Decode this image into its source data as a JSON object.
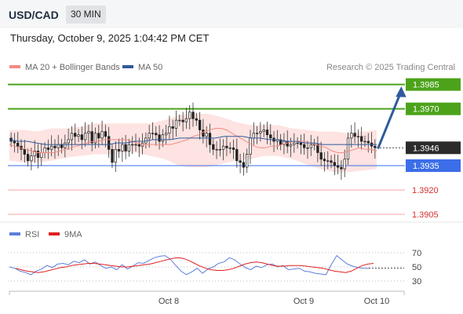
{
  "header": {
    "symbol": "USD/CAD",
    "timeframe": "30 MIN"
  },
  "timestamp": "Thursday, October 9, 2025 1:04:42 PM CET",
  "legend": {
    "ma20": {
      "label": "MA 20 + Bollinger Bands",
      "color": "#f28b82"
    },
    "ma50": {
      "label": "MA 50",
      "color": "#2e5a9c"
    }
  },
  "credit": "Research © 2025 Trading Central",
  "rsi_legend": {
    "rsi": {
      "label": "RSI",
      "color": "#5b7fdb"
    },
    "ma9": {
      "label": "9MA",
      "color": "#e02020"
    }
  },
  "chart_data": [
    {
      "type": "candlestick",
      "title": "USD/CAD",
      "timeframe": "30 MIN",
      "price_range": [
        1.39,
        1.399
      ],
      "x_tick_labels": [
        "Oct 8",
        "Oct 9",
        "Oct 10"
      ],
      "levels": [
        {
          "label": "1.3985",
          "value": 1.3985,
          "kind": "resistance",
          "color": "#4ca31a"
        },
        {
          "label": "1.3970",
          "value": 1.397,
          "kind": "resistance",
          "color": "#4ca31a"
        },
        {
          "label": "1.3946",
          "value": 1.3946,
          "kind": "last",
          "color": "#2b2b2b"
        },
        {
          "label": "1.3935",
          "value": 1.3935,
          "kind": "pivot",
          "color": "#3b6ee8"
        },
        {
          "label": "1.3920",
          "value": 1.392,
          "kind": "support",
          "color": "#d32f2f"
        },
        {
          "label": "1.3905",
          "value": 1.3905,
          "kind": "support",
          "color": "#d32f2f"
        }
      ],
      "closes": [
        1.395,
        1.3949,
        1.3947,
        1.3945,
        1.3942,
        1.3938,
        1.3941,
        1.3944,
        1.394,
        1.3943,
        1.3946,
        1.3945,
        1.3947,
        1.3946,
        1.3948,
        1.3946,
        1.3949,
        1.3951,
        1.3955,
        1.3953,
        1.3954,
        1.3951,
        1.3955,
        1.3956,
        1.3949,
        1.3955,
        1.3952,
        1.3956,
        1.3953,
        1.3945,
        1.3937,
        1.3945,
        1.3944,
        1.3948,
        1.3944,
        1.3948,
        1.3948,
        1.3948,
        1.3947,
        1.3949,
        1.3952,
        1.3955,
        1.3955,
        1.3954,
        1.395,
        1.3954,
        1.3955,
        1.3959,
        1.3958,
        1.3963,
        1.3963,
        1.3962,
        1.3964,
        1.3968,
        1.3964,
        1.3963,
        1.3957,
        1.3953,
        1.3955,
        1.3948,
        1.3945,
        1.3945,
        1.3945,
        1.3947,
        1.3946,
        1.3946,
        1.3945,
        1.3938,
        1.3937,
        1.3934,
        1.3942,
        1.3952,
        1.3955,
        1.3955,
        1.3956,
        1.3957,
        1.3954,
        1.3952,
        1.395,
        1.3951,
        1.3948,
        1.395,
        1.3947,
        1.3948,
        1.3949,
        1.3949,
        1.3948,
        1.3946,
        1.3946,
        1.3948,
        1.3948,
        1.3943,
        1.3939,
        1.3938,
        1.3938,
        1.3937,
        1.3935,
        1.3934,
        1.3933,
        1.3939,
        1.3952,
        1.3955,
        1.3953,
        1.3953,
        1.395,
        1.395,
        1.3949,
        1.3947,
        1.3946
      ],
      "ma20": [
        1.3948,
        1.3947,
        1.3946,
        1.3945,
        1.3944,
        1.3943,
        1.3943,
        1.3943,
        1.3943,
        1.3944,
        1.3945,
        1.3946,
        1.3947,
        1.3948,
        1.3949,
        1.395,
        1.395,
        1.3951,
        1.3951,
        1.3951,
        1.3951,
        1.3951,
        1.395,
        1.3949,
        1.3948,
        1.3948,
        1.3948,
        1.3948,
        1.3948,
        1.3948,
        1.3949,
        1.395,
        1.3951,
        1.3953,
        1.3954,
        1.3956,
        1.3957,
        1.3958,
        1.3958,
        1.3957,
        1.3955,
        1.3953,
        1.3951,
        1.3949,
        1.3947,
        1.3946,
        1.3946,
        1.3947,
        1.3947,
        1.3948,
        1.3949,
        1.395,
        1.395,
        1.395,
        1.3949,
        1.3948,
        1.3947,
        1.3946,
        1.3944,
        1.3943,
        1.3943,
        1.3944,
        1.3945,
        1.3946,
        1.3945,
        1.3945,
        1.3944
      ],
      "ma50": [
        1.3951,
        1.395,
        1.395,
        1.3949,
        1.3948,
        1.3948,
        1.3948,
        1.3948,
        1.3948,
        1.3948,
        1.3948,
        1.3948,
        1.3949,
        1.3949,
        1.395,
        1.395,
        1.3951,
        1.3951,
        1.3951,
        1.3952,
        1.3952,
        1.3952,
        1.3952,
        1.3952,
        1.3953,
        1.3953,
        1.3953,
        1.3952,
        1.3952,
        1.3951,
        1.3951,
        1.395,
        1.395,
        1.3949,
        1.3949,
        1.3948,
        1.3948,
        1.3948,
        1.3948,
        1.3948,
        1.3948,
        1.3948
      ],
      "bollinger_upper": [
        1.3957,
        1.3957,
        1.3956,
        1.3958,
        1.3958,
        1.3959,
        1.3961,
        1.3961,
        1.3961,
        1.3961,
        1.3961,
        1.3963,
        1.3966,
        1.3967,
        1.3967,
        1.3965,
        1.3962,
        1.396,
        1.396,
        1.396,
        1.3958,
        1.3957,
        1.3956,
        1.3956,
        1.3955,
        1.3956,
        1.3957
      ],
      "bollinger_lower": [
        1.3938,
        1.3937,
        1.3937,
        1.3938,
        1.394,
        1.3941,
        1.3942,
        1.3942,
        1.3943,
        1.3943,
        1.3941,
        1.3939,
        1.3935,
        1.3934,
        1.3934,
        1.3936,
        1.3938,
        1.3939,
        1.3941,
        1.3941,
        1.3939,
        1.3936,
        1.3933,
        1.3931,
        1.3931,
        1.3932,
        1.3933
      ],
      "forecast_arrow": {
        "from": 1.3946,
        "to": 1.3985
      }
    },
    {
      "type": "line",
      "title": "RSI",
      "ylim": [
        20,
        80
      ],
      "y_tick_labels": [
        "70",
        "50",
        "30"
      ],
      "series": [
        {
          "name": "RSI",
          "color": "#5b7fdb",
          "values": [
            50,
            48,
            44,
            42,
            39,
            44,
            47,
            52,
            49,
            54,
            55,
            53,
            58,
            56,
            60,
            54,
            57,
            52,
            48,
            50,
            46,
            53,
            47,
            51,
            56,
            55,
            59,
            63,
            65,
            66,
            61,
            52,
            44,
            39,
            43,
            48,
            41,
            47,
            50,
            55,
            57,
            63,
            60,
            54,
            49,
            46,
            51,
            49,
            53,
            54,
            50,
            52,
            46,
            47,
            48,
            44,
            43,
            41,
            40,
            39,
            53,
            66,
            60,
            54,
            51,
            49,
            48,
            48
          ]
        },
        {
          "name": "9MA",
          "color": "#e02020",
          "values": [
            48,
            46,
            44,
            43,
            42,
            43,
            45,
            47,
            49,
            50,
            52,
            53,
            54,
            55,
            55,
            54,
            53,
            52,
            51,
            50,
            50,
            51,
            52,
            53,
            54,
            56,
            58,
            60,
            62,
            63,
            62,
            59,
            55,
            51,
            48,
            46,
            45,
            45,
            46,
            48,
            51,
            54,
            56,
            57,
            56,
            54,
            52,
            51,
            51,
            52,
            52,
            52,
            51,
            50,
            49,
            48,
            46,
            44,
            43,
            42,
            44,
            48,
            52,
            54,
            55
          ]
        }
      ]
    }
  ]
}
